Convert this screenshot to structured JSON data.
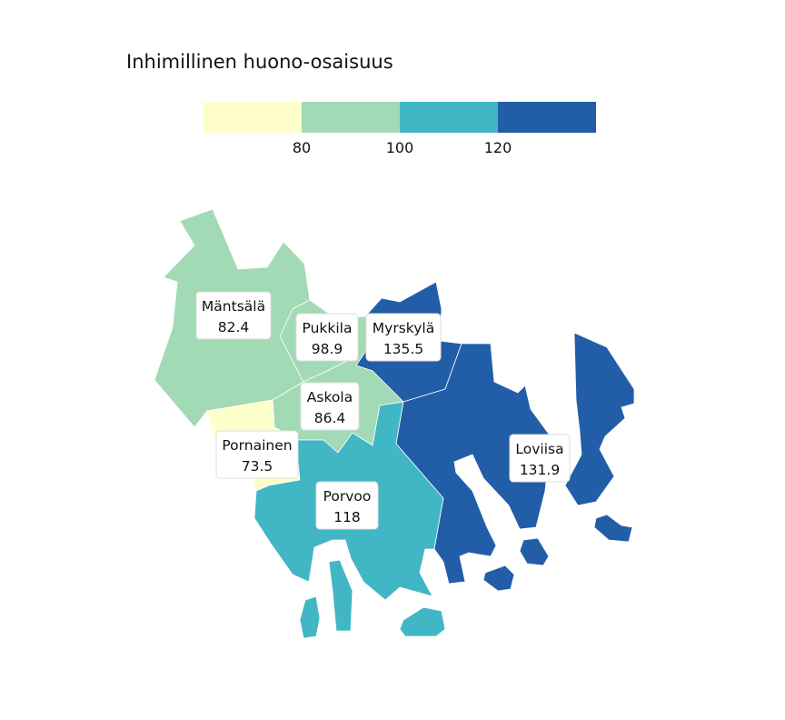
{
  "title": "Inhimillinen huono-osaisuus",
  "legend": {
    "colors": [
      "#ffffcc",
      "#a1dab4",
      "#41b6c4",
      "#225ea8"
    ],
    "ticks": [
      "80",
      "100",
      "120"
    ]
  },
  "regions": [
    {
      "name": "Mäntsälä",
      "value": "82.4",
      "color": "#a1dab4"
    },
    {
      "name": "Pukkila",
      "value": "98.9",
      "color": "#a1dab4"
    },
    {
      "name": "Myrskylä",
      "value": "135.5",
      "color": "#225ea8"
    },
    {
      "name": "Askola",
      "value": "86.4",
      "color": "#a1dab4"
    },
    {
      "name": "Pornainen",
      "value": "73.5",
      "color": "#ffffcc"
    },
    {
      "name": "Porvoo",
      "value": "118",
      "color": "#41b6c4"
    },
    {
      "name": "Loviisa",
      "value": "131.9",
      "color": "#225ea8"
    }
  ]
}
